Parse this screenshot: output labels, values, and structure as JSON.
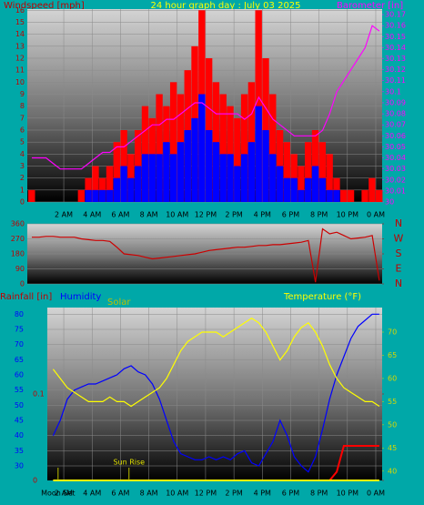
{
  "chart_data": [
    {
      "type": "bar",
      "title": "24 hour graph day : July 03 2025",
      "y_label": "Windspeed [mph]",
      "y2_label": "Barometer [in]",
      "x": [
        -0.25,
        0.25,
        0.75,
        1.25,
        1.75,
        2.25,
        2.75,
        3.25,
        3.75,
        4.25,
        4.75,
        5.25,
        5.75,
        6.25,
        6.75,
        7.25,
        7.75,
        8.25,
        8.75,
        9.25,
        9.75,
        10.25,
        10.75,
        11.25,
        11.75,
        12.25,
        12.75,
        13.25,
        13.75,
        14.25,
        14.75,
        15.25,
        15.75,
        16.25,
        16.75,
        17.25,
        17.75,
        18.25,
        18.75,
        19.25,
        19.75,
        20.25,
        20.75,
        21.25,
        21.75,
        22.25,
        22.75,
        23.25,
        23.75,
        24.25
      ],
      "xlim": [
        -0.57,
        24.45
      ],
      "xticks": [
        {
          "value": 2,
          "label": "2 AM"
        },
        {
          "value": 4,
          "label": "4 AM"
        },
        {
          "value": 6,
          "label": "6 AM"
        },
        {
          "value": 8,
          "label": "8 AM"
        },
        {
          "value": 10,
          "label": "10 AM"
        },
        {
          "value": 12,
          "label": "12 PM"
        },
        {
          "value": 14,
          "label": "2 PM"
        },
        {
          "value": 16,
          "label": "4 PM"
        },
        {
          "value": 18,
          "label": "6 PM"
        },
        {
          "value": 20,
          "label": "8 PM"
        },
        {
          "value": 22,
          "label": "10 PM"
        },
        {
          "value": 24,
          "label": "0 AM"
        }
      ],
      "ylim": [
        0,
        16.1
      ],
      "yticks": [
        0,
        1,
        2,
        3,
        4,
        5,
        6,
        7,
        8,
        9,
        10,
        11,
        12,
        13,
        14,
        15,
        16
      ],
      "y2lim": [
        30.0,
        30.175
      ],
      "y2ticks": [
        30,
        30.01,
        30.02,
        30.03,
        30.04,
        30.05,
        30.06,
        30.07,
        30.08,
        30.09,
        30.1,
        30.11,
        30.12,
        30.13,
        30.14,
        30.15,
        30.16,
        30.17
      ],
      "grid": true,
      "series": [
        {
          "color": "#ff0000",
          "values": [
            1,
            0,
            0,
            0,
            0,
            0,
            0,
            1,
            2,
            3,
            2,
            3,
            5,
            6,
            4,
            6,
            8,
            7,
            9,
            8,
            10,
            9,
            11,
            13,
            16,
            12,
            10,
            9,
            8,
            7,
            9,
            10,
            16,
            12,
            9,
            6,
            5,
            4,
            3,
            5,
            6,
            5,
            4,
            2,
            1,
            1,
            0,
            1,
            2,
            1
          ]
        },
        {
          "color": "#0000ff",
          "values": [
            0,
            0,
            0,
            0,
            0,
            0,
            0,
            0,
            1,
            1,
            1,
            1,
            2,
            3,
            2,
            3,
            4,
            4,
            4,
            5,
            4,
            5,
            6,
            7,
            9,
            6,
            5,
            4,
            4,
            3,
            4,
            5,
            8,
            6,
            4,
            3,
            2,
            2,
            1,
            2,
            3,
            2,
            1,
            1,
            0,
            0,
            0,
            0,
            0,
            0
          ]
        },
        {
          "type": "line",
          "axis": "y2",
          "color": "#ff00ff",
          "values": [
            30.04,
            30.04,
            30.04,
            30.035,
            30.03,
            30.03,
            30.03,
            30.03,
            30.035,
            30.04,
            30.045,
            30.045,
            30.05,
            30.05,
            30.055,
            30.06,
            30.065,
            30.07,
            30.07,
            30.075,
            30.075,
            30.08,
            30.085,
            30.09,
            30.09,
            30.085,
            30.08,
            30.08,
            30.08,
            30.08,
            30.075,
            30.08,
            30.095,
            30.085,
            30.075,
            30.07,
            30.065,
            30.06,
            30.06,
            30.06,
            30.06,
            30.065,
            30.08,
            30.1,
            30.11,
            30.12,
            30.13,
            30.14,
            30.16,
            30.155
          ]
        }
      ]
    },
    {
      "type": "line",
      "x": [
        -0.25,
        0.25,
        0.75,
        1.25,
        1.75,
        2.25,
        2.75,
        3.25,
        3.75,
        4.25,
        4.75,
        5.25,
        5.75,
        6.25,
        6.75,
        7.25,
        7.75,
        8.25,
        8.75,
        9.25,
        9.75,
        10.25,
        10.75,
        11.25,
        11.75,
        12.25,
        12.75,
        13.25,
        13.75,
        14.25,
        14.75,
        15.25,
        15.75,
        16.25,
        16.75,
        17.25,
        17.75,
        18.25,
        18.75,
        19.25,
        19.75,
        20.25,
        20.75,
        21.25,
        21.75,
        22.25,
        22.75,
        23.25,
        23.75,
        24.25
      ],
      "xlim": [
        -0.57,
        24.45
      ],
      "ylim": [
        0,
        360
      ],
      "yticks": [
        0,
        90,
        180,
        270,
        360
      ],
      "y2lim": [
        0,
        360
      ],
      "y2ticks": [
        {
          "value": 0,
          "label": "N"
        },
        {
          "value": 90,
          "label": "E"
        },
        {
          "value": 180,
          "label": "S"
        },
        {
          "value": 270,
          "label": "W"
        },
        {
          "value": 360,
          "label": "N"
        }
      ],
      "grid": true,
      "series": [
        {
          "color": "#cc0000",
          "values": [
            280,
            280,
            285,
            285,
            280,
            280,
            280,
            270,
            265,
            260,
            260,
            255,
            220,
            180,
            175,
            170,
            160,
            150,
            155,
            160,
            165,
            170,
            175,
            180,
            190,
            200,
            205,
            210,
            215,
            220,
            220,
            225,
            230,
            230,
            235,
            235,
            240,
            245,
            250,
            260,
            10,
            330,
            300,
            310,
            290,
            270,
            275,
            280,
            290,
            20
          ]
        }
      ]
    },
    {
      "type": "line",
      "y_label": "Humidity",
      "rain_label": "Rainfall [in]",
      "solar_label": "Solar",
      "y2_label": "Temperature (°F)",
      "x": [
        1.25,
        1.75,
        2.25,
        2.75,
        3.25,
        3.75,
        4.25,
        4.75,
        5.25,
        5.75,
        6.25,
        6.75,
        7.25,
        7.75,
        8.25,
        8.75,
        9.25,
        9.75,
        10.25,
        10.75,
        11.25,
        11.75,
        12.25,
        12.75,
        13.25,
        13.75,
        14.25,
        14.75,
        15.25,
        15.75,
        16.25,
        16.75,
        17.25,
        17.75,
        18.25,
        18.75,
        19.25,
        19.75,
        20.25,
        20.75,
        21.25,
        21.75,
        22.25,
        22.75,
        23.25,
        23.75,
        24.25
      ],
      "xlim": [
        -0.57,
        24.45
      ],
      "xticks": [
        {
          "value": 2,
          "label": "2 AM"
        },
        {
          "value": 4,
          "label": "4 AM"
        },
        {
          "value": 6,
          "label": "6 AM"
        },
        {
          "value": 8,
          "label": "8 AM"
        },
        {
          "value": 10,
          "label": "10 AM"
        },
        {
          "value": 12,
          "label": "12 PM"
        },
        {
          "value": 14,
          "label": "2 PM"
        },
        {
          "value": 16,
          "label": "4 PM"
        },
        {
          "value": 18,
          "label": "6 PM"
        },
        {
          "value": 20,
          "label": "8 PM"
        },
        {
          "value": 22,
          "label": "10 PM"
        },
        {
          "value": 24,
          "label": "0 AM"
        }
      ],
      "ylim": [
        25.2,
        82.2
      ],
      "yticks": [
        30,
        35,
        40,
        45,
        50,
        55,
        60,
        65,
        70,
        75,
        80
      ],
      "y2lim": [
        38,
        75.3
      ],
      "y2ticks": [
        40,
        45,
        50,
        55,
        60,
        65,
        70
      ],
      "rain_lim": [
        0,
        0.2
      ],
      "rain_ticks": [
        0,
        0.1
      ],
      "solar_lim": [
        0,
        1000
      ],
      "grid": true,
      "annotations": [
        {
          "x": 1.6,
          "label": "Moon Set"
        },
        {
          "x": 6.6,
          "label": "Sun Rise"
        }
      ],
      "series": [
        {
          "axis": "y",
          "color": "#0000ff",
          "values": [
            40,
            45,
            52,
            55,
            56,
            57,
            57,
            58,
            59,
            60,
            62,
            63,
            61,
            60,
            57,
            52,
            45,
            38,
            34,
            33,
            32,
            32,
            33,
            32,
            33,
            32,
            34,
            35,
            31,
            30,
            34,
            38,
            45,
            40,
            33,
            30,
            28,
            33,
            42,
            52,
            60,
            66,
            72,
            76,
            78,
            80,
            80
          ]
        },
        {
          "axis": "y2",
          "color": "#ffff00",
          "values": [
            62,
            60,
            58,
            57,
            56,
            55,
            55,
            55,
            56,
            55,
            55,
            54,
            55,
            56,
            57,
            58,
            60,
            63,
            66,
            68,
            69,
            70,
            70,
            70,
            69,
            70,
            71,
            72,
            73,
            72,
            70,
            67,
            64,
            66,
            69,
            71,
            72,
            70,
            67,
            63,
            60,
            58,
            57,
            56,
            55,
            55,
            54
          ]
        },
        {
          "axis": "rain",
          "color": "#ff0000",
          "values": [
            0,
            0,
            0,
            0,
            0,
            0,
            0,
            0,
            0,
            0,
            0,
            0,
            0,
            0,
            0,
            0,
            0,
            0,
            0,
            0,
            0,
            0,
            0,
            0,
            0,
            0,
            0,
            0,
            0,
            0,
            0,
            0,
            0,
            0,
            0,
            0,
            0,
            0,
            0,
            0,
            0.01,
            0.04,
            0.04,
            0.04,
            0.04,
            0.04,
            0.04
          ]
        },
        {
          "axis": "solar",
          "color": "#ffff00",
          "values": [
            0,
            0,
            0,
            0,
            0,
            0,
            0,
            0,
            0,
            0,
            0,
            0,
            0,
            0,
            0,
            0,
            0,
            0,
            0,
            0,
            0,
            0,
            0,
            0,
            0,
            0,
            0,
            0,
            0,
            0,
            0,
            0,
            0,
            0,
            0,
            0,
            0,
            0,
            0,
            0,
            0,
            0,
            0,
            0,
            0,
            0,
            0
          ]
        }
      ]
    }
  ]
}
